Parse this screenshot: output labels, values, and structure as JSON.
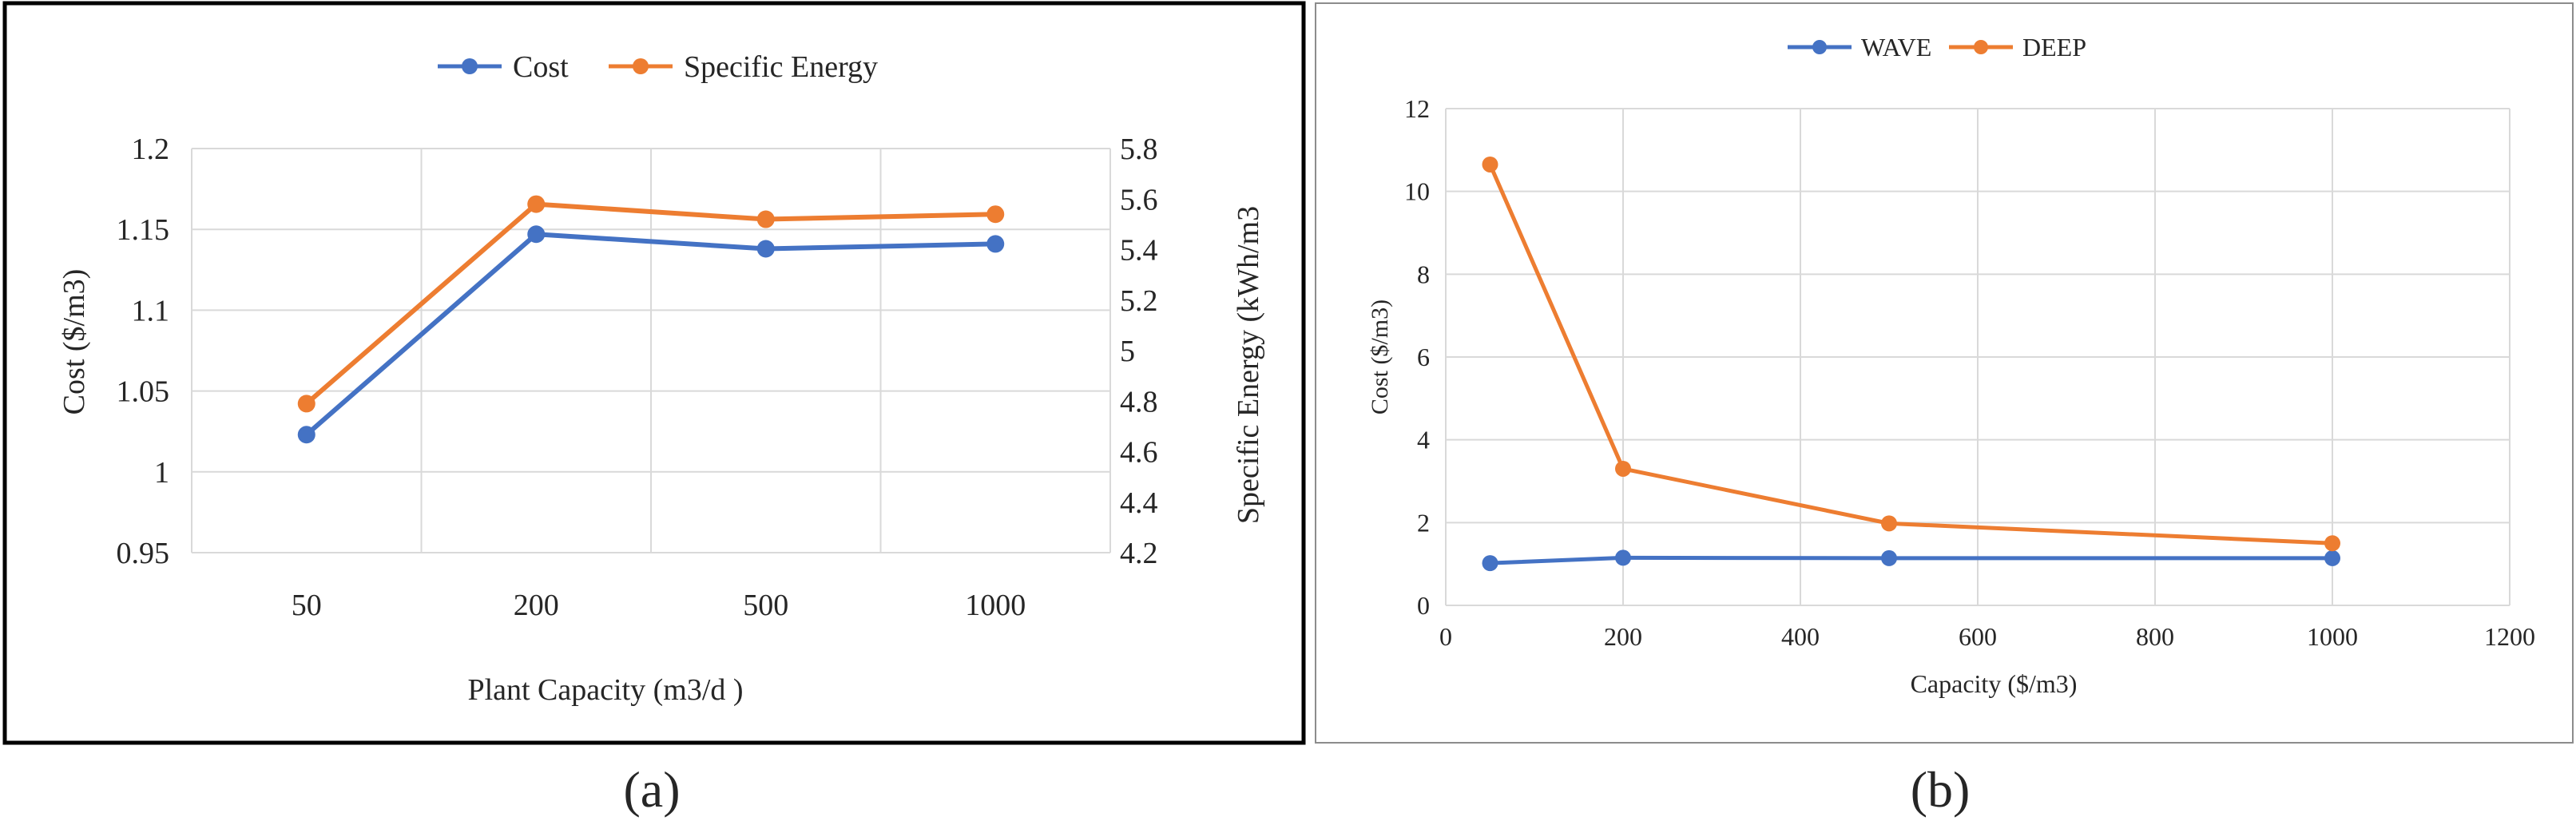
{
  "chart_data": [
    {
      "panel_label": "(a)",
      "type": "line",
      "title": "",
      "xlabel": "Plant Capacity (m3/d  )",
      "ylabel": "Cost ($/m3)",
      "y2label": "Specific Energy (kWh/m3",
      "categories": [
        "50",
        "200",
        "500",
        "1000"
      ],
      "ylim": [
        0.95,
        1.2
      ],
      "y_ticks": [
        "0.95",
        "1",
        "1.05",
        "1.1",
        "1.15",
        "1.2"
      ],
      "y2lim": [
        4.2,
        5.8
      ],
      "y2_ticks": [
        "4.2",
        "4.4",
        "4.6",
        "4.8",
        "5",
        "5.2",
        "5.4",
        "5.6",
        "5.8"
      ],
      "grid": true,
      "legend": "top",
      "series": [
        {
          "name": "Cost",
          "axis": "left",
          "color": "#4472C4",
          "values": [
            1.023,
            1.147,
            1.138,
            1.141
          ]
        },
        {
          "name": "Specific Energy",
          "axis": "right",
          "color": "#ED7D31",
          "values": [
            4.79,
            5.58,
            5.52,
            5.54
          ]
        }
      ]
    },
    {
      "panel_label": "(b)",
      "type": "scatter",
      "title": "",
      "xlabel": "Capacity ($/m3)",
      "ylabel": "Cost ($/m3)",
      "xlim": [
        0,
        1200
      ],
      "x_ticks": [
        "0",
        "200",
        "400",
        "600",
        "800",
        "1000",
        "1200"
      ],
      "ylim": [
        0,
        12
      ],
      "y_ticks": [
        "0",
        "2",
        "4",
        "6",
        "8",
        "10",
        "12"
      ],
      "grid": true,
      "legend": "top",
      "series": [
        {
          "name": "WAVE",
          "color": "#4472C4",
          "x": [
            50,
            200,
            500,
            1000
          ],
          "y": [
            1.02,
            1.15,
            1.14,
            1.14
          ]
        },
        {
          "name": "DEEP",
          "color": "#ED7D31",
          "x": [
            50,
            200,
            500,
            1000
          ],
          "y": [
            10.65,
            3.3,
            1.98,
            1.5
          ]
        }
      ]
    }
  ]
}
